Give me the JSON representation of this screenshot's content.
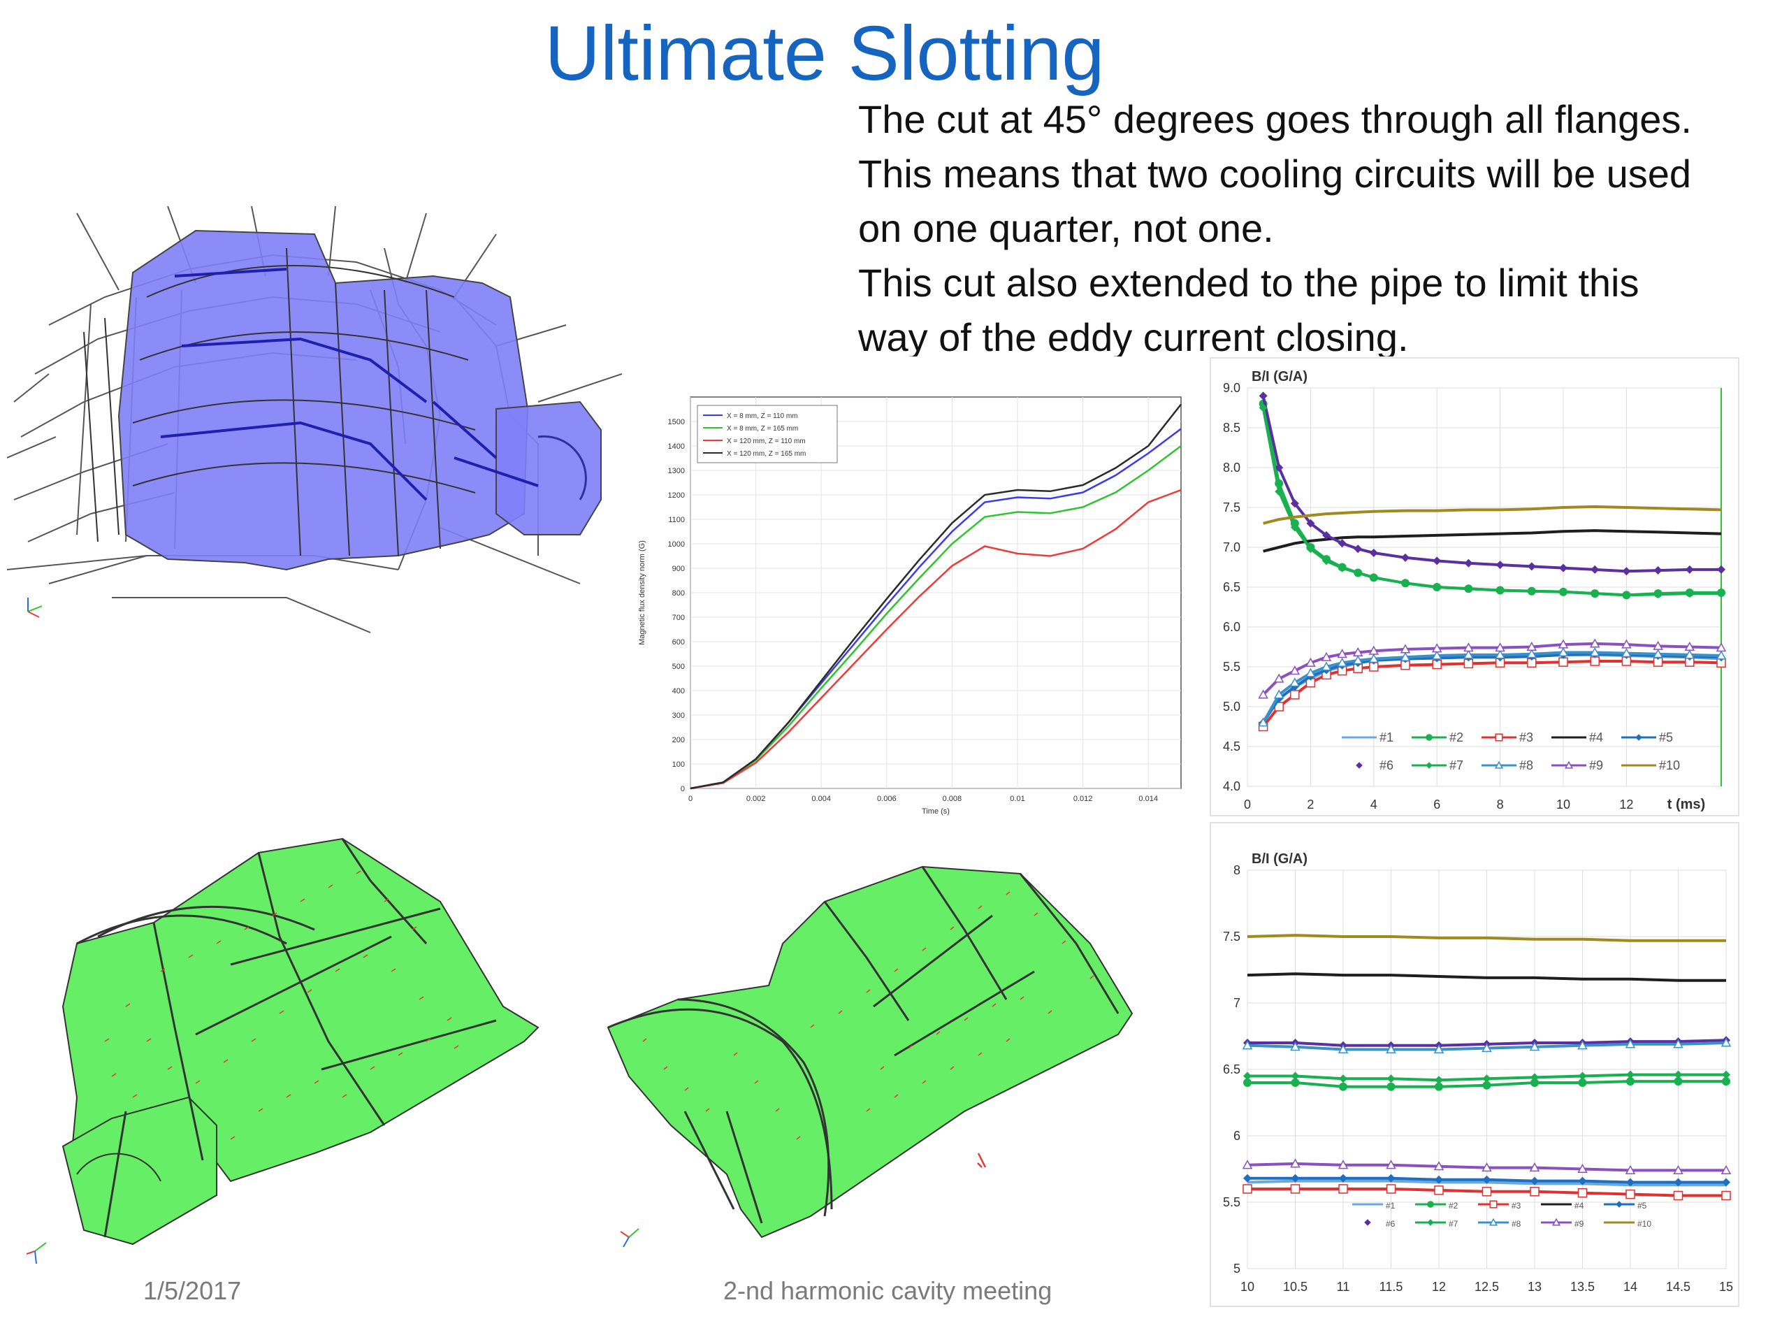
{
  "slide": {
    "title": "Ultimate Slotting",
    "paragraphs": [
      "The cut at 45° degrees goes through all flanges.",
      "This means that two cooling circuits will be used",
      "on one quarter, not one.",
      "This cut also extended to the pipe to limit this",
      "way of the eddy current closing."
    ],
    "footer_date": "1/5/2017",
    "footer_event": "2-nd harmonic cavity meeting"
  },
  "colors": {
    "title": "#1565c0",
    "model_blue": "#8080f8",
    "model_green": "#66ee66",
    "arrows": "#e8383a"
  },
  "icons": [
    "axis-triad-icon",
    "axis-triad-icon",
    "axis-triad-icon"
  ],
  "chart_data": [
    {
      "type": "line",
      "title": "",
      "xlabel": "Time (s)",
      "ylabel": "Magnetic flux density norm (G)",
      "xlim": [
        0,
        0.015
      ],
      "ylim": [
        0,
        1600
      ],
      "x_ticks": [
        0,
        0.002,
        0.004,
        0.006,
        0.008,
        0.01,
        0.012,
        0.014
      ],
      "x_tick_labels": [
        "0",
        "0.002",
        "0.004",
        "0.006",
        "0.008",
        "0.01",
        "0.012",
        "0.014"
      ],
      "y_ticks": [
        0,
        100,
        200,
        300,
        400,
        500,
        600,
        700,
        800,
        900,
        1000,
        1100,
        1200,
        1300,
        1400,
        1500
      ],
      "grid": true,
      "legend_position": "top-left",
      "x": [
        0,
        0.001,
        0.002,
        0.003,
        0.004,
        0.005,
        0.006,
        0.007,
        0.008,
        0.009,
        0.01,
        0.011,
        0.012,
        0.013,
        0.014,
        0.015
      ],
      "series": [
        {
          "name": "X = 8 mm, Z = 110 mm",
          "color": "#3a3af0",
          "values": [
            0,
            25,
            120,
            270,
            430,
            590,
            750,
            905,
            1050,
            1170,
            1190,
            1185,
            1210,
            1280,
            1370,
            1470
          ]
        },
        {
          "name": "X = 8 mm, Z = 165 mm",
          "color": "#2ec52e",
          "values": [
            0,
            25,
            115,
            255,
            410,
            560,
            715,
            860,
            1000,
            1110,
            1130,
            1125,
            1150,
            1210,
            1300,
            1400
          ]
        },
        {
          "name": "X = 120 mm, Z = 110 mm",
          "color": "#ee3a3a",
          "values": [
            0,
            22,
            105,
            230,
            370,
            510,
            650,
            785,
            910,
            990,
            960,
            950,
            980,
            1060,
            1170,
            1220
          ]
        },
        {
          "name": "X = 120 mm, Z = 165 mm",
          "color": "#2a2a2a",
          "values": [
            0,
            25,
            120,
            270,
            440,
            610,
            775,
            935,
            1085,
            1200,
            1220,
            1215,
            1240,
            1310,
            1400,
            1570
          ]
        }
      ]
    },
    {
      "type": "line",
      "title": "",
      "ylabel": "B/I (G/A)",
      "xlabel": "t (ms)",
      "xlim": [
        0,
        15
      ],
      "ylim": [
        4.0,
        9.0
      ],
      "x_ticks": [
        0,
        2,
        4,
        6,
        8,
        10,
        12
      ],
      "x_tick_labels": [
        "0",
        "2",
        "4",
        "6",
        "8",
        "10",
        "12"
      ],
      "y_ticks": [
        4.0,
        4.5,
        5.0,
        5.5,
        6.0,
        6.5,
        7.0,
        7.5,
        8.0,
        8.5,
        9.0
      ],
      "y_tick_labels": [
        "4.0",
        "4.5",
        "5.0",
        "5.5",
        "6.0",
        "6.5",
        "7.0",
        "7.5",
        "8.0",
        "8.5",
        "9.0"
      ],
      "grid": true,
      "legend_position": "bottom",
      "x": [
        0.5,
        1,
        1.5,
        2,
        2.5,
        3,
        3.5,
        4,
        5,
        6,
        7,
        8,
        9,
        10,
        11,
        12,
        13,
        14,
        15
      ],
      "series": [
        {
          "name": "#1",
          "color": "#6aa8e0",
          "marker": "none",
          "values": [
            4.8,
            5.1,
            5.25,
            5.35,
            5.45,
            5.5,
            5.55,
            5.58,
            5.6,
            5.62,
            5.62,
            5.62,
            5.63,
            5.65,
            5.65,
            5.64,
            5.63,
            5.62,
            5.6
          ]
        },
        {
          "name": "#2",
          "color": "#19b050",
          "marker": "circle",
          "values": [
            8.8,
            7.8,
            7.3,
            7.0,
            6.85,
            6.75,
            6.68,
            6.62,
            6.55,
            6.5,
            6.48,
            6.46,
            6.45,
            6.44,
            6.42,
            6.4,
            6.42,
            6.43,
            6.43
          ]
        },
        {
          "name": "#3",
          "color": "#e03030",
          "marker": "square",
          "values": [
            4.75,
            5.0,
            5.15,
            5.3,
            5.4,
            5.45,
            5.48,
            5.5,
            5.52,
            5.53,
            5.54,
            5.55,
            5.55,
            5.56,
            5.57,
            5.57,
            5.56,
            5.56,
            5.55
          ]
        },
        {
          "name": "#4",
          "color": "#1e1e1e",
          "marker": "none",
          "values": [
            6.95,
            7.0,
            7.05,
            7.08,
            7.1,
            7.12,
            7.13,
            7.13,
            7.14,
            7.15,
            7.16,
            7.17,
            7.18,
            7.2,
            7.21,
            7.2,
            7.19,
            7.18,
            7.17
          ]
        },
        {
          "name": "#5",
          "color": "#1f6fc0",
          "marker": "diamond",
          "values": [
            4.8,
            5.1,
            5.25,
            5.38,
            5.46,
            5.52,
            5.55,
            5.58,
            5.6,
            5.61,
            5.62,
            5.62,
            5.63,
            5.65,
            5.66,
            5.65,
            5.64,
            5.63,
            5.62
          ]
        },
        {
          "name": "#6",
          "color": "#5a2fa0",
          "marker": "diamond",
          "values": [
            8.9,
            8.0,
            7.55,
            7.3,
            7.15,
            7.05,
            6.98,
            6.93,
            6.87,
            6.83,
            6.8,
            6.78,
            6.76,
            6.74,
            6.72,
            6.7,
            6.71,
            6.72,
            6.72
          ]
        },
        {
          "name": "#7",
          "color": "#19b050",
          "marker": "diamond",
          "values": [
            8.75,
            7.7,
            7.25,
            6.98,
            6.83,
            6.74,
            6.68,
            6.62,
            6.55,
            6.5,
            6.48,
            6.46,
            6.45,
            6.44,
            6.42,
            6.4,
            6.41,
            6.42,
            6.42
          ]
        },
        {
          "name": "#8",
          "color": "#3a90c8",
          "marker": "triangle",
          "values": [
            4.8,
            5.15,
            5.3,
            5.42,
            5.5,
            5.55,
            5.58,
            5.6,
            5.62,
            5.64,
            5.65,
            5.65,
            5.66,
            5.68,
            5.68,
            5.67,
            5.66,
            5.65,
            5.64
          ]
        },
        {
          "name": "#9",
          "color": "#8a50c0",
          "marker": "triangle",
          "values": [
            5.15,
            5.35,
            5.45,
            5.55,
            5.62,
            5.66,
            5.68,
            5.7,
            5.72,
            5.73,
            5.74,
            5.74,
            5.75,
            5.78,
            5.79,
            5.78,
            5.76,
            5.75,
            5.74
          ]
        },
        {
          "name": "#10",
          "color": "#a08a20",
          "marker": "none",
          "values": [
            7.3,
            7.35,
            7.38,
            7.4,
            7.42,
            7.43,
            7.44,
            7.45,
            7.46,
            7.46,
            7.47,
            7.47,
            7.48,
            7.5,
            7.51,
            7.5,
            7.49,
            7.48,
            7.47
          ]
        }
      ]
    },
    {
      "type": "line",
      "title": "",
      "ylabel": "B/I (G/A)",
      "xlabel": "",
      "xlim": [
        10,
        15
      ],
      "ylim": [
        5,
        8
      ],
      "x_ticks": [
        10,
        10.5,
        11,
        11.5,
        12,
        12.5,
        13,
        13.5,
        14,
        14.5,
        15
      ],
      "x_tick_labels": [
        "10",
        "10.5",
        "11",
        "11.5",
        "12",
        "12.5",
        "13",
        "13.5",
        "14",
        "14.5",
        "15"
      ],
      "y_ticks": [
        5,
        5.5,
        6,
        6.5,
        7,
        7.5,
        8
      ],
      "y_tick_labels": [
        "5",
        "5.5",
        "6",
        "6.5",
        "7",
        "7.5",
        "8"
      ],
      "grid": true,
      "legend_position": "bottom",
      "x": [
        10,
        10.5,
        11,
        11.5,
        12,
        12.5,
        13,
        13.5,
        14,
        14.5,
        15
      ],
      "series": [
        {
          "name": "#1",
          "color": "#6aa8e0",
          "marker": "none",
          "values": [
            5.65,
            5.66,
            5.66,
            5.66,
            5.65,
            5.65,
            5.64,
            5.64,
            5.63,
            5.63,
            5.63
          ]
        },
        {
          "name": "#2",
          "color": "#19b050",
          "marker": "circle",
          "values": [
            6.4,
            6.4,
            6.37,
            6.37,
            6.37,
            6.38,
            6.4,
            6.4,
            6.41,
            6.41,
            6.41
          ]
        },
        {
          "name": "#3",
          "color": "#e03030",
          "marker": "square",
          "values": [
            5.6,
            5.6,
            5.6,
            5.6,
            5.59,
            5.58,
            5.58,
            5.57,
            5.56,
            5.55,
            5.55
          ]
        },
        {
          "name": "#4",
          "color": "#1e1e1e",
          "marker": "none",
          "values": [
            7.21,
            7.22,
            7.21,
            7.21,
            7.2,
            7.19,
            7.19,
            7.18,
            7.18,
            7.17,
            7.17
          ]
        },
        {
          "name": "#5",
          "color": "#1f6fc0",
          "marker": "diamond",
          "values": [
            5.68,
            5.68,
            5.68,
            5.68,
            5.67,
            5.67,
            5.66,
            5.66,
            5.65,
            5.65,
            5.65
          ]
        },
        {
          "name": "#6",
          "color": "#5a2fa0",
          "marker": "diamond",
          "values": [
            6.7,
            6.7,
            6.68,
            6.68,
            6.68,
            6.69,
            6.7,
            6.7,
            6.71,
            6.71,
            6.72
          ]
        },
        {
          "name": "#7",
          "color": "#19b050",
          "marker": "diamond",
          "values": [
            6.45,
            6.45,
            6.43,
            6.43,
            6.42,
            6.43,
            6.44,
            6.45,
            6.46,
            6.46,
            6.46
          ]
        },
        {
          "name": "#8",
          "color": "#3a90c8",
          "marker": "triangle",
          "values": [
            6.68,
            6.67,
            6.65,
            6.65,
            6.65,
            6.66,
            6.67,
            6.68,
            6.69,
            6.69,
            6.7
          ]
        },
        {
          "name": "#9",
          "color": "#8a50c0",
          "marker": "triangle",
          "values": [
            5.78,
            5.79,
            5.78,
            5.78,
            5.77,
            5.76,
            5.76,
            5.75,
            5.74,
            5.74,
            5.74
          ]
        },
        {
          "name": "#10",
          "color": "#a08a20",
          "marker": "none",
          "values": [
            7.5,
            7.51,
            7.5,
            7.5,
            7.49,
            7.49,
            7.48,
            7.48,
            7.47,
            7.47,
            7.47
          ]
        }
      ]
    }
  ]
}
